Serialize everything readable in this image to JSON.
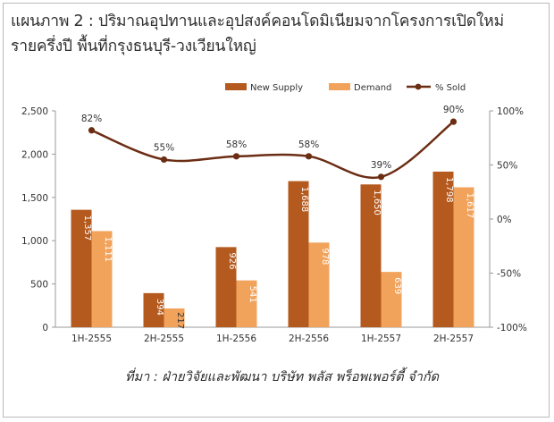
{
  "title_line1": "แผนภาพ 2 : ปริมาณอุปทานและอุปสงค์คอนโดมิเนียมจากโครงการเปิดใหม่",
  "title_line2": "รายครึ่งปี พื้นที่กรุงธนบุรี-วงเวียนใหญ่",
  "source": "ที่มา : ฝ่ายวิจัยและพัฒนา บริษัท พลัส พร็อพเพอร์ตี้ จำกัด",
  "colors": {
    "supply": "#b55a1e",
    "demand": "#f1a35c",
    "sold": "#6b2d13"
  },
  "chart_data": {
    "type": "bar",
    "categories": [
      "1H-2555",
      "2H-2555",
      "1H-2556",
      "2H-2556",
      "1H-2557",
      "2H-2557"
    ],
    "series": [
      {
        "name": "New Supply",
        "type": "bar",
        "axis": "left",
        "values": [
          1357,
          394,
          926,
          1688,
          1650,
          1798
        ],
        "labels": [
          "1,357",
          "394",
          "926",
          "1,688",
          "1,650",
          "1,798"
        ]
      },
      {
        "name": "Demand",
        "type": "bar",
        "axis": "left",
        "values": [
          1111,
          217,
          541,
          978,
          639,
          1617
        ],
        "labels": [
          "1,111",
          "217",
          "541",
          "978",
          "639",
          "1,617"
        ]
      },
      {
        "name": "% Sold",
        "type": "line",
        "axis": "right",
        "values": [
          82,
          55,
          58,
          58,
          39,
          90
        ],
        "labels": [
          "82%",
          "55%",
          "58%",
          "58%",
          "39%",
          "90%"
        ]
      }
    ],
    "ylim": [
      0,
      2500
    ],
    "yticks": [
      "0",
      "500",
      "1,000",
      "1,500",
      "2,000",
      "2,500"
    ],
    "y2lim": [
      -100,
      100
    ],
    "y2ticks": [
      "-100%",
      "-50%",
      "0%",
      "50%",
      "100%"
    ],
    "legend_position": "top"
  }
}
